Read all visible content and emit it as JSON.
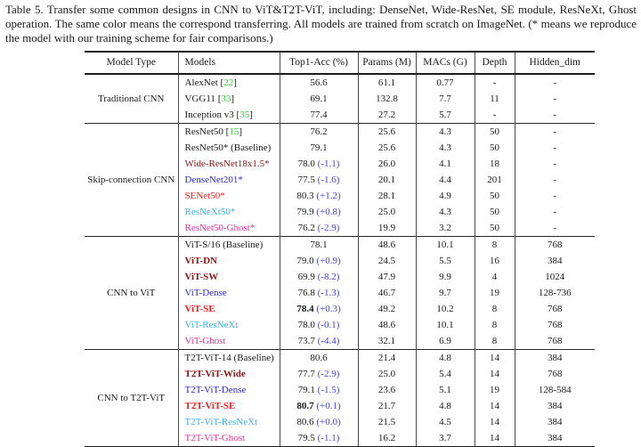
{
  "caption": "Table 5. Transfer some common designs in CNN to ViT&T2T-ViT, including: DenseNet, Wide-ResNet, SE module, ResNeXt, Ghost operation. The same color means the correspond transferring. All models are trained from scratch on ImageNet. (* means we reproduce the model with our training scheme for fair comparisons.)",
  "columns": [
    "Model Type",
    "Models",
    "Top1-Acc (%)",
    "Params (M)",
    "MACs (G)",
    "Depth",
    "Hidden_dim"
  ],
  "palette": {
    "black": "#1a1a1a",
    "maroon": "#8f1414",
    "blue": "#2b2bc8",
    "red": "#ee1f1d",
    "cyan": "#38b0ee",
    "magenta": "#ee2f95",
    "ref_green": "#2ecc2e",
    "delta": "#4545d8"
  },
  "sections": [
    {
      "type": "Traditional CNN",
      "rows": [
        {
          "model": "AlexNet",
          "ref": "22",
          "color": "black",
          "acc": "56.6",
          "params": "61.1",
          "macs": "0.77",
          "depth": "-",
          "hidden": "-"
        },
        {
          "model": "VGG11",
          "ref": "33",
          "color": "black",
          "acc": "69.1",
          "params": "132.8",
          "macs": "7.7",
          "depth": "11",
          "hidden": "-"
        },
        {
          "model": "Inception v3",
          "ref": "35",
          "color": "black",
          "acc": "77.4",
          "params": "27.2",
          "macs": "5.7",
          "depth": "-",
          "hidden": "-"
        }
      ]
    },
    {
      "type": "Skip-connection CNN",
      "rows": [
        {
          "model": "ResNet50",
          "ref": "15",
          "color": "black",
          "acc": "76.2",
          "params": "25.6",
          "macs": "4.3",
          "depth": "50",
          "hidden": "-"
        },
        {
          "model": "ResNet50* (Baseline)",
          "color": "black",
          "acc": "79.1",
          "params": "25.6",
          "macs": "4.3",
          "depth": "50",
          "hidden": "-"
        },
        {
          "model": "Wide-ResNet18x1.5*",
          "color": "maroon",
          "acc": "78.0",
          "delta": "-1.1",
          "params": "26.0",
          "macs": "4.1",
          "depth": "18",
          "hidden": "-"
        },
        {
          "model": "DenseNet201*",
          "color": "blue",
          "acc": "77.5",
          "delta": "-1.6",
          "params": "20.1",
          "macs": "4.4",
          "depth": "201",
          "hidden": "-"
        },
        {
          "model": "SENet50*",
          "color": "red",
          "acc": "80.3",
          "delta": "+1.2",
          "params": "28.1",
          "macs": "4.9",
          "depth": "50",
          "hidden": "-"
        },
        {
          "model": "ResNeXt50*",
          "color": "cyan",
          "acc": "79.9",
          "delta": "+0.8",
          "params": "25.0",
          "macs": "4.3",
          "depth": "50",
          "hidden": "-"
        },
        {
          "model": "ResNet50-Ghost*",
          "color": "magenta",
          "acc": "76.2",
          "delta": "-2.9",
          "params": "19.9",
          "macs": "3.2",
          "depth": "50",
          "hidden": "-"
        }
      ]
    },
    {
      "type": "CNN to ViT",
      "rows": [
        {
          "model": "ViT-S/16 (Baseline)",
          "color": "black",
          "acc": "78.1",
          "params": "48.6",
          "macs": "10.1",
          "depth": "8",
          "hidden": "768"
        },
        {
          "model": "ViT-DN",
          "color": "maroon",
          "bold": true,
          "acc": "79.0",
          "delta": "+0.9",
          "params": "24.5",
          "macs": "5.5",
          "depth": "16",
          "hidden": "384"
        },
        {
          "model": "ViT-SW",
          "color": "maroon",
          "bold": true,
          "acc": "69.9",
          "delta": "-8.2",
          "params": "47.9",
          "macs": "9.9",
          "depth": "4",
          "hidden": "1024"
        },
        {
          "model": "ViT-Dense",
          "color": "blue",
          "acc": "76.8",
          "delta": "-1.3",
          "params": "46.7",
          "macs": "9.7",
          "depth": "19",
          "hidden": "128-736"
        },
        {
          "model": "ViT-SE",
          "color": "red",
          "bold": true,
          "acc": "78.4",
          "acc_bold": true,
          "delta": "+0.3",
          "params": "49.2",
          "macs": "10.2",
          "depth": "8",
          "hidden": "768"
        },
        {
          "model": "ViT-ResNeXt",
          "color": "cyan",
          "acc": "78.0",
          "delta": "-0.1",
          "params": "48.6",
          "macs": "10.1",
          "depth": "8",
          "hidden": "768"
        },
        {
          "model": "ViT-Ghost",
          "color": "magenta",
          "acc": "73.7",
          "delta": "-4.4",
          "params": "32.1",
          "macs": "6.9",
          "depth": "8",
          "hidden": "768"
        }
      ]
    },
    {
      "type": "CNN to T2T-ViT",
      "rows": [
        {
          "model": "T2T-ViT-14 (Baseline)",
          "color": "black",
          "acc": "80.6",
          "params": "21.4",
          "macs": "4.8",
          "depth": "14",
          "hidden": "384"
        },
        {
          "model": "T2T-ViT-Wide",
          "color": "maroon",
          "bold": true,
          "acc": "77.7",
          "delta": "-2.9",
          "params": "25.0",
          "macs": "5.4",
          "depth": "14",
          "hidden": "768"
        },
        {
          "model": "T2T-ViT-Dense",
          "color": "blue",
          "acc": "79.1",
          "delta": "-1.5",
          "params": "23.6",
          "macs": "5.1",
          "depth": "19",
          "hidden": "128-584"
        },
        {
          "model": "T2T-ViT-SE",
          "color": "red",
          "bold": true,
          "acc": "80.7",
          "acc_bold": true,
          "delta": "+0.1",
          "params": "21.7",
          "macs": "4.8",
          "depth": "14",
          "hidden": "384"
        },
        {
          "model": "T2T-ViT-ResNeXt",
          "color": "cyan",
          "acc": "80.6",
          "delta": "+0.0",
          "params": "21.5",
          "macs": "4.5",
          "depth": "14",
          "hidden": "384"
        },
        {
          "model": "T2T-ViT-Ghost",
          "color": "magenta",
          "acc": "79.5",
          "delta": "-1.1",
          "params": "16.2",
          "macs": "3.7",
          "depth": "14",
          "hidden": "384"
        }
      ]
    }
  ]
}
